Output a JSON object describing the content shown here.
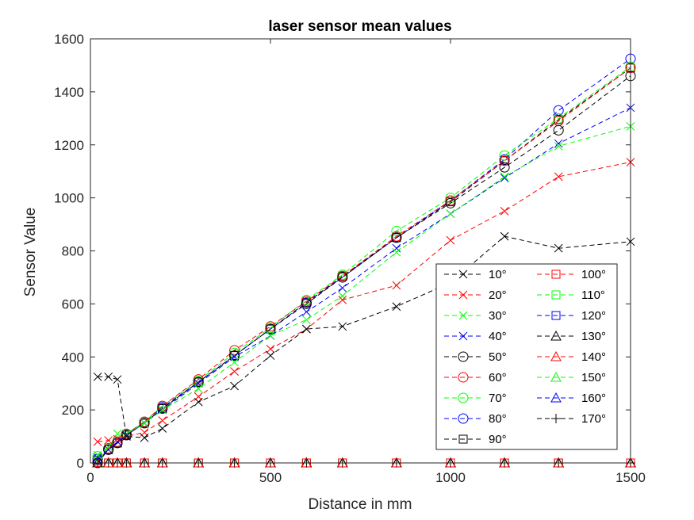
{
  "chart_data": {
    "type": "line",
    "title": "laser sensor mean values",
    "xlabel": "Distance in mm",
    "ylabel": "Sensor Value",
    "xlim": [
      0,
      1500
    ],
    "ylim": [
      0,
      1600
    ],
    "xticks": [
      "0",
      "500",
      "1000",
      "1500"
    ],
    "yticks": [
      "0",
      "200",
      "400",
      "600",
      "800",
      "1000",
      "1200",
      "1400",
      "1600"
    ],
    "grid": false,
    "legend_location": "bottom-right",
    "x": [
      20,
      50,
      75,
      100,
      150,
      200,
      300,
      400,
      500,
      600,
      700,
      850,
      1000,
      1150,
      1300,
      1500
    ],
    "series": [
      {
        "name": "10°",
        "color": "#000000",
        "marker": "x",
        "values": [
          325,
          325,
          315,
          100,
          95,
          130,
          230,
          290,
          405,
          505,
          515,
          590,
          680,
          855,
          810,
          835
        ]
      },
      {
        "name": "20°",
        "color": "#ff0000",
        "marker": "x",
        "values": [
          80,
          85,
          90,
          100,
          115,
          160,
          250,
          345,
          430,
          505,
          615,
          670,
          840,
          950,
          1080,
          1135
        ]
      },
      {
        "name": "30°",
        "color": "#00ff00",
        "marker": "x",
        "values": [
          30,
          60,
          110,
          110,
          150,
          200,
          280,
          380,
          480,
          540,
          630,
          795,
          940,
          1080,
          1195,
          1270
        ]
      },
      {
        "name": "40°",
        "color": "#0000ff",
        "marker": "x",
        "values": [
          20,
          50,
          80,
          105,
          150,
          200,
          300,
          400,
          480,
          570,
          660,
          810,
          940,
          1075,
          1205,
          1340
        ]
      },
      {
        "name": "50°",
        "color": "#000000",
        "marker": "o",
        "values": [
          0,
          50,
          75,
          105,
          150,
          205,
          305,
          405,
          505,
          600,
          700,
          850,
          980,
          1115,
          1255,
          1460
        ]
      },
      {
        "name": "60°",
        "color": "#ff0000",
        "marker": "o",
        "values": [
          5,
          55,
          80,
          110,
          155,
          215,
          315,
          425,
          515,
          610,
          705,
          855,
          990,
          1140,
          1290,
          1490
        ]
      },
      {
        "name": "70°",
        "color": "#00ff00",
        "marker": "o",
        "values": [
          25,
          55,
          80,
          110,
          155,
          215,
          310,
          415,
          510,
          615,
          710,
          875,
          1000,
          1160,
          1300,
          1495
        ]
      },
      {
        "name": "80°",
        "color": "#0000ff",
        "marker": "o",
        "values": [
          15,
          50,
          80,
          105,
          155,
          210,
          305,
          405,
          505,
          605,
          700,
          850,
          990,
          1145,
          1330,
          1525
        ]
      },
      {
        "name": "90°",
        "color": "#000000",
        "marker": "s",
        "values": [
          10,
          50,
          75,
          105,
          150,
          205,
          305,
          405,
          505,
          605,
          705,
          850,
          985,
          1140,
          1295,
          1490
        ]
      },
      {
        "name": "100°",
        "color": "#ff0000",
        "marker": "s",
        "values": [
          0,
          0,
          0,
          0,
          0,
          0,
          0,
          0,
          0,
          0,
          0,
          0,
          0,
          0,
          0,
          0
        ]
      },
      {
        "name": "110°",
        "color": "#00ff00",
        "marker": "s",
        "values": [
          0,
          0,
          0,
          0,
          0,
          0,
          0,
          0,
          0,
          0,
          0,
          0,
          0,
          0,
          0,
          0
        ]
      },
      {
        "name": "120°",
        "color": "#0000ff",
        "marker": "s",
        "values": [
          0,
          0,
          0,
          0,
          0,
          0,
          0,
          0,
          0,
          0,
          0,
          0,
          0,
          0,
          0,
          0
        ]
      },
      {
        "name": "130°",
        "color": "#000000",
        "marker": "^",
        "values": [
          0,
          0,
          0,
          0,
          0,
          0,
          0,
          0,
          0,
          0,
          0,
          0,
          0,
          0,
          0,
          0
        ]
      },
      {
        "name": "140°",
        "color": "#ff0000",
        "marker": "^",
        "values": [
          0,
          0,
          0,
          0,
          0,
          0,
          0,
          0,
          0,
          0,
          0,
          0,
          0,
          0,
          0,
          0
        ]
      },
      {
        "name": "150°",
        "color": "#00ff00",
        "marker": "^",
        "values": [
          0,
          0,
          0,
          0,
          0,
          0,
          0,
          0,
          0,
          0,
          0,
          0,
          0,
          0,
          0,
          0
        ]
      },
      {
        "name": "160°",
        "color": "#0000ff",
        "marker": "^",
        "values": [
          0,
          0,
          0,
          0,
          0,
          0,
          0,
          0,
          0,
          0,
          0,
          0,
          0,
          0,
          0,
          0
        ]
      },
      {
        "name": "170°",
        "color": "#000000",
        "marker": "+",
        "values": [
          0,
          0,
          0,
          0,
          0,
          0,
          0,
          0,
          0,
          0,
          0,
          0,
          0,
          0,
          0,
          0
        ]
      }
    ]
  }
}
